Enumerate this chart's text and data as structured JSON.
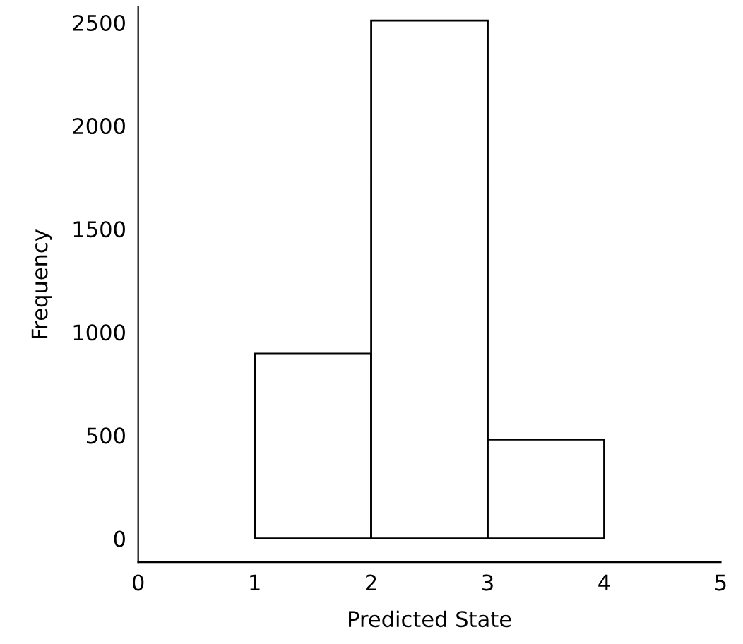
{
  "chart_data": {
    "type": "histogram",
    "xlabel": "Predicted State",
    "ylabel": "Frequency",
    "bins": [
      1,
      2,
      3,
      4
    ],
    "values": [
      895,
      2510,
      480
    ],
    "color": "#ffffff",
    "xlim": [
      0,
      5
    ],
    "xticks": [
      0,
      1,
      2,
      3,
      4,
      5
    ],
    "ylim": [
      -115,
      2575
    ],
    "yticks": [
      0,
      500,
      1000,
      1500,
      2000,
      2500
    ],
    "grid": false,
    "legend": false
  }
}
